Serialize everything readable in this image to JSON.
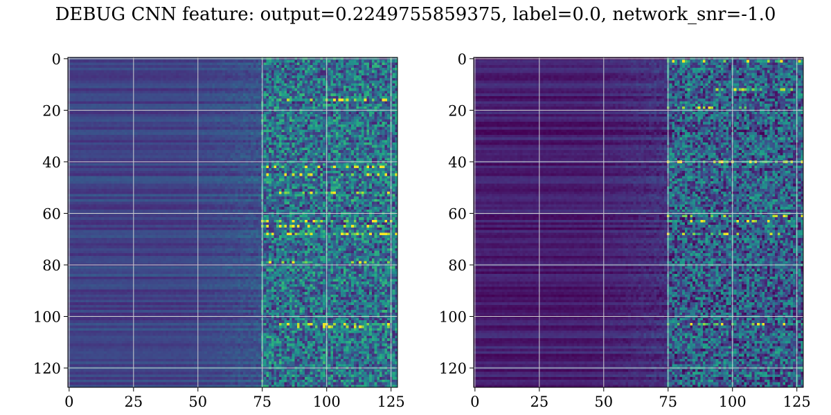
{
  "title": "DEBUG CNN feature: output=0.2249755859375, label=0.0, network_snr=-1.0",
  "colors": {
    "grid": "#d0d0d0",
    "axis": "#000000",
    "colormap": [
      "#440154",
      "#482878",
      "#3e4989",
      "#31688e",
      "#26828e",
      "#1f9e89",
      "#35b779",
      "#6ece58",
      "#b5de2b",
      "#fde725"
    ]
  },
  "chart_data": [
    {
      "type": "heatmap",
      "colormap": "viridis",
      "grid": true,
      "rows": 128,
      "cols": 128,
      "xlim": [
        0,
        127
      ],
      "ylim": [
        127,
        0
      ],
      "xticks": [
        0,
        25,
        50,
        75,
        100,
        125
      ],
      "yticks": [
        0,
        20,
        40,
        60,
        80,
        100,
        120
      ],
      "xtick_labels": [
        "0",
        "25",
        "50",
        "75",
        "100",
        "125"
      ],
      "ytick_labels": [
        "0",
        "20",
        "40",
        "60",
        "80",
        "100",
        "120"
      ],
      "description_values": {
        "left_region_level": 0.2,
        "right_region_level": 0.5,
        "noise_start_col": 75,
        "bright_rows": [
          16,
          42,
          45,
          52,
          63,
          65,
          68,
          79,
          103,
          104
        ]
      }
    },
    {
      "type": "heatmap",
      "colormap": "viridis",
      "grid": true,
      "rows": 128,
      "cols": 128,
      "xlim": [
        0,
        127
      ],
      "ylim": [
        127,
        0
      ],
      "xticks": [
        0,
        25,
        50,
        75,
        100,
        125
      ],
      "yticks": [
        0,
        20,
        40,
        60,
        80,
        100,
        120
      ],
      "xtick_labels": [
        "0",
        "25",
        "50",
        "75",
        "100",
        "125"
      ],
      "ytick_labels": [
        "0",
        "20",
        "40",
        "60",
        "80",
        "100",
        "120"
      ],
      "description_values": {
        "left_region_level": 0.08,
        "right_region_level": 0.35,
        "noise_start_col": 75,
        "bright_rows": [
          1,
          12,
          19,
          40,
          61,
          63,
          68,
          103
        ]
      }
    }
  ]
}
